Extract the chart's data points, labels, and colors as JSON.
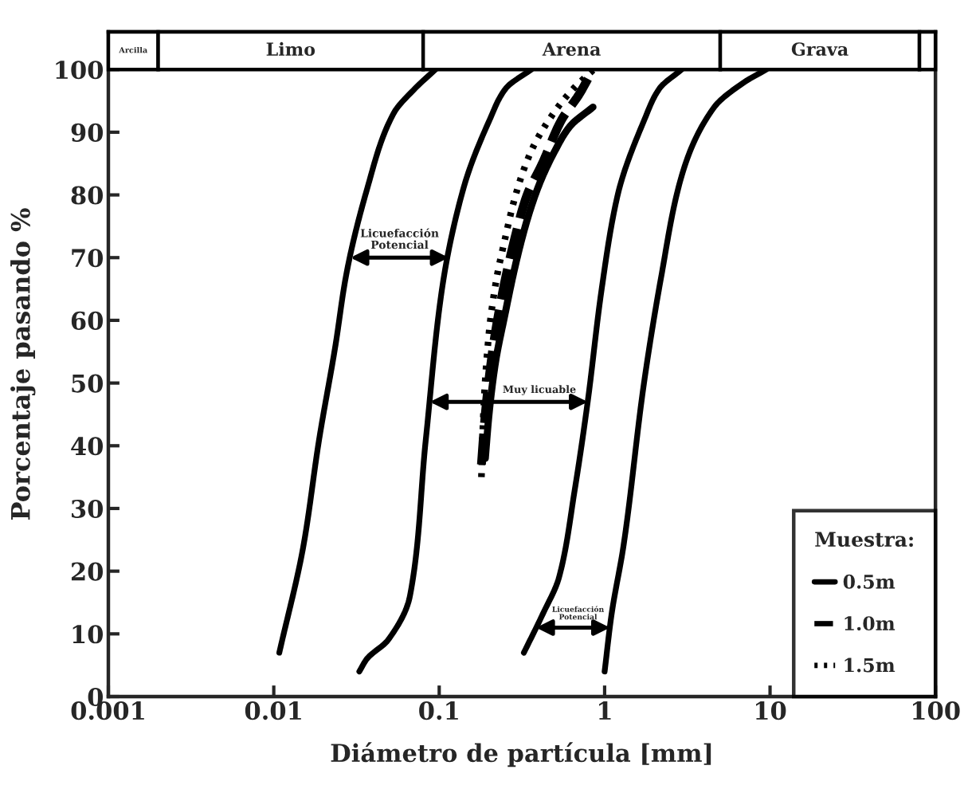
{
  "chart_data": {
    "type": "line",
    "xlabel": "Diámetro de partícula [mm]",
    "ylabel": "Porcentaje pasando %",
    "log": "x",
    "xlim": [
      0.001,
      100
    ],
    "xticks": [
      0.001,
      0.01,
      0.1,
      1,
      10,
      100
    ],
    "ylim": [
      0,
      106
    ],
    "yticks": [
      0,
      10,
      20,
      30,
      40,
      50,
      60,
      70,
      80,
      90,
      100
    ],
    "legend": "bottom right",
    "legend_title": "Muestra:",
    "series": [
      {
        "color": "#000000",
        "line_style": "solid",
        "x": [
          0.0108,
          0.0151,
          0.0188,
          0.0236,
          0.0273,
          0.0367,
          0.053,
          0.0716,
          0.095
        ],
        "values": [
          7,
          24,
          41,
          56,
          67,
          81,
          93,
          97,
          100
        ]
      },
      {
        "color": "#000000",
        "line_style": "solid",
        "x": [
          0.0329,
          0.0365,
          0.049,
          0.0665,
          0.083,
          0.104,
          0.14,
          0.202,
          0.253,
          0.36
        ],
        "values": [
          4,
          6,
          9,
          16,
          41,
          65,
          81,
          92,
          97,
          100
        ]
      },
      {
        "color": "#000000",
        "line_style": "solid",
        "x": [
          0.325,
          0.42,
          0.53,
          0.66,
          0.79,
          0.96,
          1.2,
          1.74,
          2.15,
          2.92
        ],
        "values": [
          7,
          13,
          19,
          33,
          47,
          65,
          80,
          92,
          97,
          100
        ]
      },
      {
        "color": "#000000",
        "line_style": "solid",
        "x": [
          1.0,
          1.1,
          1.3,
          1.73,
          2.2,
          2.92,
          4.6,
          7.0,
          9.5
        ],
        "values": [
          4,
          13,
          24,
          50,
          67,
          83,
          94,
          98,
          100
        ]
      },
      {
        "name": "0.5m",
        "color": "#000000",
        "line_style": "solid",
        "x": [
          0.19,
          0.2,
          0.218,
          0.25,
          0.29,
          0.34,
          0.4,
          0.5,
          0.62,
          0.85
        ],
        "values": [
          38,
          45,
          53,
          61,
          69,
          76,
          81.5,
          87,
          91,
          94
        ]
      },
      {
        "name": "1.0m",
        "color": "#000000",
        "line_style": "dashed",
        "x": [
          0.18,
          0.19,
          0.21,
          0.24,
          0.28,
          0.34,
          0.42,
          0.55,
          0.7,
          0.85
        ],
        "values": [
          37,
          45,
          55,
          64,
          72,
          80,
          85,
          92,
          96,
          100
        ]
      },
      {
        "name": "1.5m",
        "color": "#000000",
        "line_style": "dotted",
        "x": [
          0.18,
          0.185,
          0.2,
          0.22,
          0.25,
          0.29,
          0.36,
          0.49,
          0.65,
          0.86
        ],
        "values": [
          35,
          45,
          58,
          66,
          73,
          80,
          87,
          93,
          97,
          100
        ]
      }
    ],
    "bands": [
      {
        "axis": "x",
        "from": 0.001,
        "to": 0.002,
        "label": "Arcilla"
      },
      {
        "axis": "x",
        "from": 0.002,
        "to": 0.08,
        "label": "Limo"
      },
      {
        "axis": "x",
        "from": 0.08,
        "to": 5,
        "label": "Arena"
      },
      {
        "axis": "x",
        "from": 5,
        "to": 80,
        "label": "Grava"
      },
      {
        "axis": "x",
        "from": 80,
        "to": 100
      }
    ],
    "annotations": [
      "Licuefacción\nPotencial",
      "Muy licuable",
      "Licuefacción\nPotencial"
    ]
  }
}
